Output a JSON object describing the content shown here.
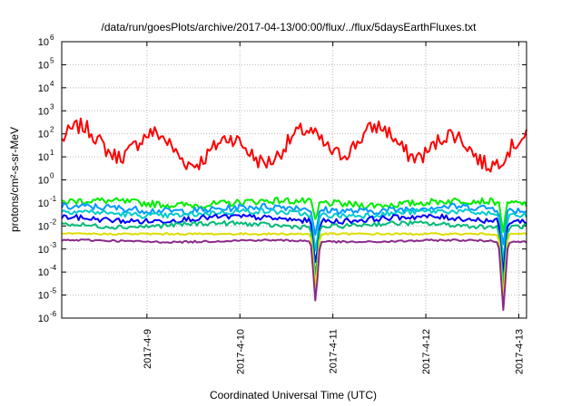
{
  "chart_data": {
    "type": "line",
    "title": "/data/run/goesPlots/archive/2017-04-13/00:00/flux/../flux/5daysEarthFluxes.txt",
    "xlabel": "Coordinated Universal Time (UTC)",
    "ylabel": "protons/cm²-s-sr-MeV",
    "y_scale": "log",
    "ylim": [
      1e-06,
      1000000.0
    ],
    "y_tick_labels": [
      {
        "base": "10",
        "exp": "-6"
      },
      {
        "base": "10",
        "exp": "-5"
      },
      {
        "base": "10",
        "exp": "-4"
      },
      {
        "base": "10",
        "exp": "-3"
      },
      {
        "base": "10",
        "exp": "-2"
      },
      {
        "base": "10",
        "exp": "-1"
      },
      {
        "base": "10",
        "exp": "0"
      },
      {
        "base": "10",
        "exp": "1"
      },
      {
        "base": "10",
        "exp": "2"
      },
      {
        "base": "10",
        "exp": "3"
      },
      {
        "base": "10",
        "exp": "4"
      },
      {
        "base": "10",
        "exp": "5"
      },
      {
        "base": "10",
        "exp": "6"
      }
    ],
    "xlim": [
      "2017-04-08T02:00",
      "2017-04-13T02:00"
    ],
    "x_ticks": [
      "2017-4-9",
      "2017-4-10",
      "2017-4-11",
      "2017-4-12",
      "2017-4-13"
    ],
    "grid": true,
    "legend": "none",
    "series": [
      {
        "color": "#ff0000",
        "base": 30,
        "jitter": 0.35,
        "waves": [
          [
            0.6,
            0.8,
            0.0
          ],
          [
            0.25,
            3.1,
            1.3
          ]
        ],
        "dips": []
      },
      {
        "color": "#00ee00",
        "base": 0.1,
        "jitter": 0.15,
        "waves": [
          [
            0.1,
            2.0,
            0.5
          ]
        ],
        "dips": [
          [
            2.73,
            0.03,
            0.8
          ],
          [
            4.75,
            0.03,
            1.2
          ]
        ]
      },
      {
        "color": "#0099ff",
        "base": 0.055,
        "jitter": 0.15,
        "waves": [
          [
            0.1,
            2.0,
            0.9
          ]
        ],
        "dips": [
          [
            2.73,
            0.03,
            1.2
          ],
          [
            4.75,
            0.03,
            1.6
          ]
        ]
      },
      {
        "color": "#00cccc",
        "base": 0.035,
        "jitter": 0.12,
        "waves": [
          [
            0.1,
            2.0,
            1.4
          ]
        ],
        "dips": [
          [
            2.73,
            0.03,
            1.6
          ],
          [
            4.75,
            0.03,
            2.0
          ]
        ]
      },
      {
        "color": "#0000ff",
        "base": 0.02,
        "jitter": 0.12,
        "waves": [
          [
            0.1,
            2.0,
            2.0
          ]
        ],
        "dips": [
          [
            2.73,
            0.03,
            1.9
          ],
          [
            4.75,
            0.03,
            2.3
          ]
        ]
      },
      {
        "color": "#00bb77",
        "base": 0.011,
        "jitter": 0.1,
        "waves": [
          [
            0.08,
            2.0,
            2.5
          ]
        ],
        "dips": [
          [
            2.73,
            0.03,
            2.2
          ],
          [
            4.75,
            0.03,
            2.6
          ]
        ]
      },
      {
        "color": "#dddd00",
        "base": 0.0045,
        "jitter": 0.04,
        "waves": [],
        "dips": [
          [
            2.73,
            0.03,
            2.3
          ],
          [
            4.75,
            0.03,
            2.8
          ]
        ]
      },
      {
        "color": "#8b2a8b",
        "base": 0.0022,
        "jitter": 0.04,
        "waves": [
          [
            0.04,
            2.0,
            1.0
          ]
        ],
        "dips": [
          [
            2.73,
            0.03,
            2.6
          ],
          [
            4.75,
            0.03,
            3.0
          ]
        ]
      }
    ]
  }
}
